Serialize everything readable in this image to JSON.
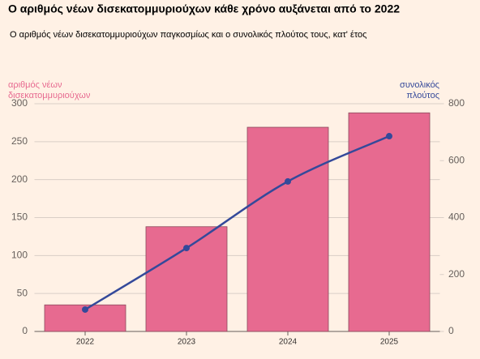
{
  "chart_data": {
    "type": "bar_line",
    "title": "Ο αριθμός νέων δισεκατομμυριούχων κάθε χρόνο αυξάνεται από το 2022",
    "subtitle": "Ο αριθμός νέων δισεκατομμυριούχων παγκοσμίως και ο συνολικός πλούτος τους, κατ' έτος",
    "y_label": [
      "αριθμός νέων",
      "δισεκατομμυριούχων"
    ],
    "y2_label": [
      "συνολικός",
      "πλούτος"
    ],
    "categories": [
      "2022",
      "2023",
      "2024",
      "2025"
    ],
    "series": [
      {
        "type": "bar",
        "color": "#e76a90",
        "values": [
          35,
          138,
          269,
          288
        ]
      },
      {
        "type": "line",
        "axis": "y2",
        "color": "#34499a",
        "values": [
          77,
          293,
          527,
          686
        ]
      }
    ],
    "ylim": [
      0,
      300
    ],
    "yticks": [
      0,
      50,
      100,
      150,
      200,
      250,
      300
    ],
    "y2lim": [
      0,
      800
    ],
    "y2ticks": [
      0,
      200,
      400,
      600,
      800
    ],
    "grid": true
  }
}
